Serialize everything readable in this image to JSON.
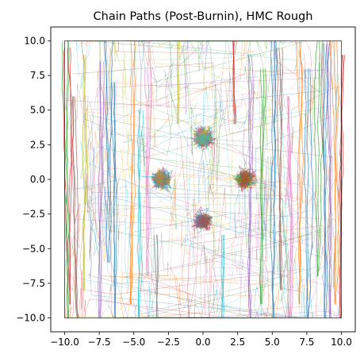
{
  "chart_data": {
    "type": "line",
    "title": "Chain Paths (Post-Burnin), HMC Rough",
    "xlabel": "",
    "ylabel": "",
    "xlim": [
      -11,
      11
    ],
    "ylim": [
      -11,
      11
    ],
    "xticks": [
      -10.0,
      -7.5,
      -5.0,
      -2.5,
      0.0,
      2.5,
      5.0,
      7.5,
      10.0
    ],
    "yticks": [
      -10.0,
      -7.5,
      -5.0,
      -2.5,
      0.0,
      2.5,
      5.0,
      7.5,
      10.0
    ],
    "xtick_labels": [
      "−10.0",
      "−7.5",
      "−5.0",
      "−2.5",
      "0.0",
      "2.5",
      "5.0",
      "7.5",
      "10.0"
    ],
    "ytick_labels": [
      "−10.0",
      "−7.5",
      "−5.0",
      "−2.5",
      "0.0",
      "2.5",
      "5.0",
      "7.5",
      "10.0"
    ],
    "grid": false,
    "legend": "none",
    "domain_box": {
      "x": [
        -10,
        10
      ],
      "y": [
        -10,
        10
      ]
    },
    "modes": [
      {
        "x": 0,
        "y": 3,
        "spread": 0.32
      },
      {
        "x": -3,
        "y": 0,
        "spread": 0.32
      },
      {
        "x": 3,
        "y": 0,
        "spread": 0.32
      },
      {
        "x": 0,
        "y": -3,
        "spread": 0.28
      }
    ],
    "vertical_paths": [
      {
        "x": -9.8,
        "y0": -10,
        "y1": 10,
        "color": "#2ca02c"
      },
      {
        "x": -9.6,
        "y0": -9,
        "y1": 9.5,
        "color": "#d62728"
      },
      {
        "x": -9.0,
        "y0": -10,
        "y1": 6,
        "color": "#8c564b"
      },
      {
        "x": -8.6,
        "y0": -8,
        "y1": 9,
        "color": "#bcbd22"
      },
      {
        "x": -7.5,
        "y0": -10,
        "y1": 8.5,
        "color": "#9467bd"
      },
      {
        "x": -6.8,
        "y0": -6,
        "y1": 10,
        "color": "#1f77b4"
      },
      {
        "x": -6.3,
        "y0": -10,
        "y1": 7,
        "color": "#1f77b4"
      },
      {
        "x": -5.2,
        "y0": -9,
        "y1": 10,
        "color": "#ff7f0e"
      },
      {
        "x": -4.6,
        "y0": -10,
        "y1": 5,
        "color": "#17becf"
      },
      {
        "x": -4.0,
        "y0": -7,
        "y1": 8,
        "color": "#e377c2"
      },
      {
        "x": -3.3,
        "y0": -10,
        "y1": -4,
        "color": "#7f7f7f"
      },
      {
        "x": -1.8,
        "y0": 4,
        "y1": 10,
        "color": "#bcbd22"
      },
      {
        "x": 1.4,
        "y0": -10,
        "y1": -4,
        "color": "#17becf"
      },
      {
        "x": 2.3,
        "y0": 4,
        "y1": 10,
        "color": "#d62728"
      },
      {
        "x": 3.4,
        "y0": -10,
        "y1": 9,
        "color": "#9467bd"
      },
      {
        "x": 4.2,
        "y0": -9,
        "y1": 8,
        "color": "#2ca02c"
      },
      {
        "x": 5.1,
        "y0": -10,
        "y1": 10,
        "color": "#1f77b4"
      },
      {
        "x": 5.6,
        "y0": -8,
        "y1": 9.5,
        "color": "#8c564b"
      },
      {
        "x": 6.3,
        "y0": -10,
        "y1": 6,
        "color": "#e377c2"
      },
      {
        "x": 7.0,
        "y0": -9,
        "y1": 10,
        "color": "#ff7f0e"
      },
      {
        "x": 7.6,
        "y0": -10,
        "y1": 8,
        "color": "#1f77b4"
      },
      {
        "x": 8.3,
        "y0": -7,
        "y1": 10,
        "color": "#2ca02c"
      },
      {
        "x": 8.8,
        "y0": -10,
        "y1": 9.8,
        "color": "#1f77b4"
      },
      {
        "x": 9.2,
        "y0": -10,
        "y1": 10,
        "color": "#9467bd"
      },
      {
        "x": 9.6,
        "y0": -9,
        "y1": 10,
        "color": "#ff7f0e"
      },
      {
        "x": 9.9,
        "y0": -10,
        "y1": 9,
        "color": "#d62728"
      }
    ]
  }
}
